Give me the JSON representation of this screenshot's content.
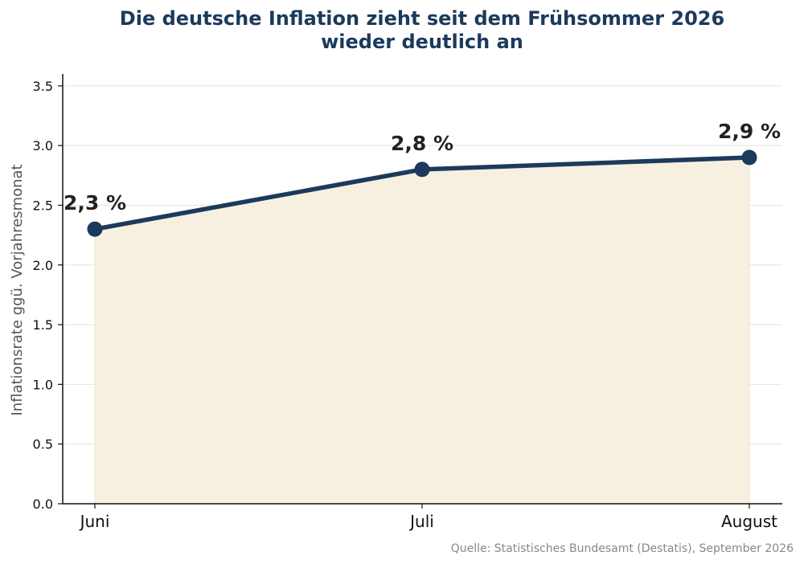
{
  "chart_data": {
    "type": "line",
    "title_line1": "Die deutsche Inflation zieht seit dem Frühsommer 2026",
    "title_line2": "wieder deutlich an",
    "ylabel": "Inflationsrate ggü. Vorjahresmonat",
    "xlabel": "",
    "categories": [
      "Juni",
      "Juli",
      "August"
    ],
    "values": [
      2.3,
      2.8,
      2.9
    ],
    "data_labels": [
      "2,3 %",
      "2,8 %",
      "2,9 %"
    ],
    "ylim": [
      0,
      3.6
    ],
    "yticks": [
      0.0,
      0.5,
      1.0,
      1.5,
      2.0,
      2.5,
      3.0,
      3.5
    ],
    "ytick_labels": [
      "0.0",
      "0.5",
      "1.0",
      "1.5",
      "2.0",
      "2.5",
      "3.0",
      "3.5"
    ],
    "grid": true,
    "area_fill": true,
    "colors": {
      "line": "#1b3a5c",
      "area": "#f7f0e1",
      "grid": "#e3e3e3",
      "title": "#1b3a5c"
    },
    "source": "Quelle: Statistisches Bundesamt (Destatis), September 2026"
  }
}
